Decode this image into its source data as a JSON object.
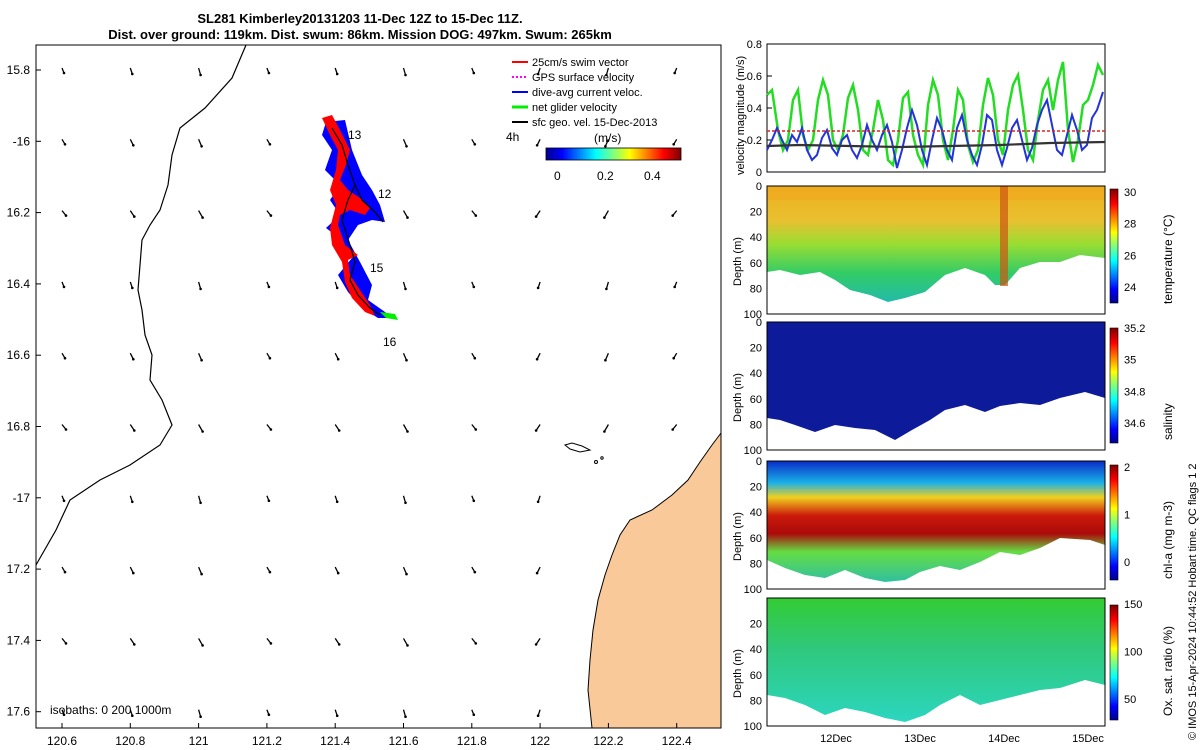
{
  "title": {
    "line1": "SL281 Kimberley20131203 11-Dec 12Z to 15-Dec 11Z.",
    "line2": "Dist. over ground: 119km. Dist. swum: 86km. Mission DOG: 497km. Swum: 265km"
  },
  "map": {
    "lon_ticks": [
      "120.6",
      "120.8",
      "121",
      "121.2",
      "121.4",
      "121.6",
      "121.8",
      "122",
      "122.2",
      "122.4"
    ],
    "lat_ticks": [
      "15.8",
      "-16",
      "16.2",
      "16.4",
      "16.6",
      "16.8",
      "-17",
      "17.2",
      "17.4",
      "17.6"
    ],
    "day_labels": [
      "13",
      "12",
      "15",
      "16"
    ],
    "hour_label": "4h",
    "legend": [
      {
        "label": "25cm/s swim vector",
        "color": "#ff0000"
      },
      {
        "label": "GPS surface velocity",
        "color": "#ff00ff"
      },
      {
        "label": "dive-avg current veloc.",
        "color": "#0000ff"
      },
      {
        "label": "net glider velocity",
        "color": "#00ee00"
      },
      {
        "label": "sfc geo. vel. 15-Dec-2013",
        "color": "#000000"
      }
    ],
    "colorbar": {
      "label": "(m/s)",
      "ticks": [
        "0",
        "0.2",
        "0.4"
      ]
    },
    "isobaths": "isobaths: 0   200   1000m",
    "land_color": "#f9c99a",
    "track_colors": {
      "swim": "#ff0000",
      "current": "#0000ff",
      "net": "#00ee00"
    }
  },
  "velocity_panel": {
    "ylabel": "velocity magnitude (m/s)",
    "yticks": [
      "0",
      "0.2",
      "0.4",
      "0.6",
      "0.8"
    ],
    "series_colors": [
      "#22dd22",
      "#2233dd",
      "#dd2222",
      "#333333"
    ]
  },
  "sections": [
    {
      "ylabel": "Depth (m)",
      "cblabel": "temperature (°C)",
      "cbticks": [
        "24",
        "26",
        "28",
        "30"
      ],
      "yticks": [
        "0",
        "20",
        "40",
        "60",
        "80",
        "100"
      ]
    },
    {
      "ylabel": "Depth (m)",
      "cblabel": "salinity",
      "cbticks": [
        "34.6",
        "34.8",
        "35",
        "35.2"
      ],
      "yticks": [
        "0",
        "20",
        "40",
        "60",
        "80",
        "100"
      ]
    },
    {
      "ylabel": "Depth (m)",
      "cblabel": "chl-a (mg m-3)",
      "cbticks": [
        "0",
        "1",
        "2"
      ],
      "yticks": [
        "0",
        "20",
        "40",
        "60",
        "80",
        "100"
      ]
    },
    {
      "ylabel": "Depth (m)",
      "cblabel": "Ox. sat. ratio (%)",
      "cbticks": [
        "50",
        "100",
        "150"
      ],
      "yticks": [
        "20",
        "40",
        "60",
        "80",
        "100"
      ]
    }
  ],
  "time_ticks": [
    "12Dec",
    "13Dec",
    "14Dec",
    "15Dec"
  ],
  "footer": "© IMOS 15-Apr-2024 10:44:52 Hobart time. QC flags 1  2"
}
